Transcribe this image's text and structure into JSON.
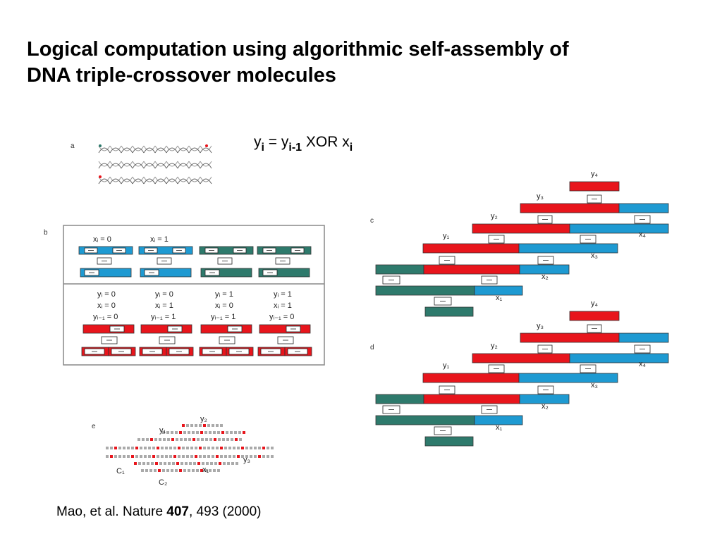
{
  "title": {
    "line1": "Logical computation using algorithmic self-assembly of",
    "line2": "DNA triple-crossover molecules"
  },
  "formula": {
    "y": "y",
    "i": "i",
    "eq": " = y",
    "im1": "i-1",
    "xor": " XOR x",
    "i2": "i"
  },
  "citation": {
    "prefix": "Mao, et al. Nature ",
    "volume": "407",
    "suffix": ", 493 (2000)"
  },
  "figure": {
    "panel_labels": [
      "a",
      "b",
      "c",
      "d",
      "e"
    ],
    "panel_b": {
      "x_headers": [
        "xᵢ = 0",
        "xᵢ = 1"
      ],
      "truth_table": [
        {
          "y": "yᵢ = 0",
          "x": "xᵢ = 0",
          "y1": "yᵢ₋₁ = 0"
        },
        {
          "y": "yᵢ = 0",
          "x": "xᵢ = 1",
          "y1": "yᵢ₋₁ = 1"
        },
        {
          "y": "yᵢ = 1",
          "x": "xᵢ = 0",
          "y1": "yᵢ₋₁ = 1"
        },
        {
          "y": "yᵢ = 1",
          "x": "xᵢ = 1",
          "y1": "yᵢ₋₁ = 0"
        }
      ]
    },
    "panel_c": {
      "y_labels": [
        "y₄",
        "y₃",
        "y₂",
        "y₁"
      ],
      "x_labels": [
        "x₄",
        "x₃",
        "x₂",
        "x₁"
      ]
    },
    "panel_d": {
      "y_labels": [
        "y₄",
        "y₃",
        "y₂",
        "y₁"
      ],
      "x_labels": [
        "x₄",
        "x₃",
        "x₂",
        "x₁"
      ]
    },
    "panel_e": {
      "labels": [
        "y₂",
        "y₁",
        "y₃",
        "x₁",
        "C₁",
        "C₂"
      ]
    }
  },
  "colors": {
    "red": "#e8151c",
    "blue": "#1e9ad2",
    "teal": "#2e7a6c"
  }
}
